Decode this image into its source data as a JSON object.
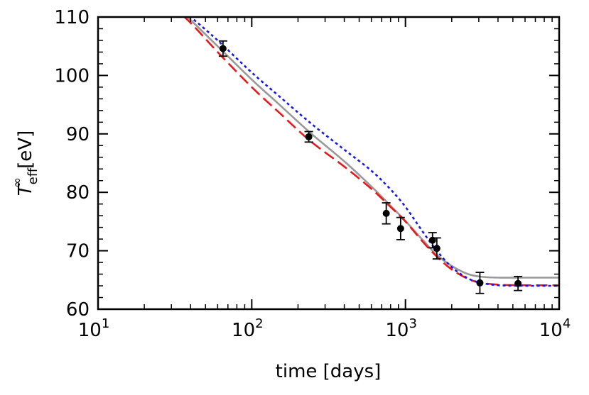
{
  "chart_data": {
    "type": "line",
    "title": "",
    "xlabel": "time [days]",
    "ylabel": {
      "symbol": "T",
      "subscript": "eff",
      "superscript": "∞",
      "unit": "[eV]"
    },
    "xscale": "log",
    "xlim": [
      10,
      10000
    ],
    "ylim": [
      60,
      110
    ],
    "x_ticks": [
      {
        "base": "10",
        "exp": "1"
      },
      {
        "base": "10",
        "exp": "2"
      },
      {
        "base": "10",
        "exp": "3"
      },
      {
        "base": "10",
        "exp": "4"
      }
    ],
    "y_ticks": [
      "60",
      "70",
      "80",
      "90",
      "100",
      "110"
    ],
    "grid": false,
    "legend": "none",
    "series": [
      {
        "style": "solid",
        "color": "#999999",
        "x": [
          30,
          40,
          60,
          100,
          150,
          240,
          400,
          600,
          800,
          1000,
          1300,
          1600,
          2000,
          2500,
          3000,
          4000,
          6000,
          10000
        ],
        "y": [
          112.5,
          109.5,
          105.0,
          99.3,
          95.1,
          90.2,
          85.3,
          81.0,
          77.7,
          75.1,
          71.8,
          69.3,
          67.4,
          66.1,
          65.6,
          65.4,
          65.4,
          65.4
        ]
      },
      {
        "style": "dashed",
        "color": "#e8191c",
        "x": [
          30,
          40,
          60,
          100,
          150,
          240,
          400,
          600,
          800,
          1000,
          1300,
          1600,
          2000,
          2500,
          3000,
          4000,
          6000,
          10000
        ],
        "y": [
          112.0,
          109.0,
          104.0,
          98.0,
          93.7,
          88.8,
          84.4,
          80.6,
          77.5,
          75.0,
          71.5,
          69.0,
          66.8,
          65.3,
          64.6,
          64.2,
          64.1,
          64.1
        ]
      },
      {
        "style": "dotted",
        "color": "#1a1ae6",
        "x": [
          30,
          40,
          60,
          100,
          150,
          240,
          400,
          600,
          800,
          1000,
          1300,
          1600,
          2000,
          2500,
          3000,
          4000,
          6000,
          10000
        ],
        "y": [
          112.5,
          110.0,
          106.0,
          100.5,
          96.5,
          91.9,
          87.3,
          83.7,
          80.5,
          77.5,
          73.2,
          70.0,
          67.2,
          65.4,
          64.6,
          64.1,
          64.0,
          64.0
        ]
      }
    ],
    "points": [
      {
        "x": 65,
        "y": 104.6,
        "err": 1.3
      },
      {
        "x": 235,
        "y": 89.5,
        "err": 0.9
      },
      {
        "x": 750,
        "y": 76.4,
        "err": 1.8
      },
      {
        "x": 930,
        "y": 73.8,
        "err": 1.9
      },
      {
        "x": 1500,
        "y": 71.8,
        "err": 1.3
      },
      {
        "x": 1600,
        "y": 70.4,
        "err": 1.8
      },
      {
        "x": 3050,
        "y": 64.5,
        "err": 1.8
      },
      {
        "x": 5400,
        "y": 64.4,
        "err": 1.2
      }
    ]
  }
}
